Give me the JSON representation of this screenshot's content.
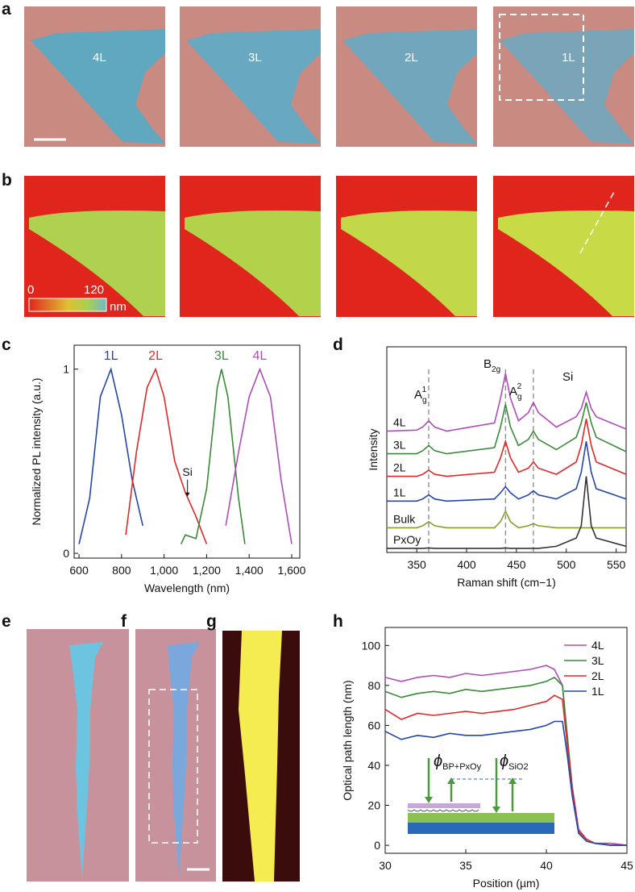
{
  "panel_labels": [
    "a",
    "b",
    "c",
    "d",
    "e",
    "f",
    "g",
    "h"
  ],
  "panel_a": {
    "layer_labels": [
      "4L",
      "3L",
      "2L",
      "1L"
    ]
  },
  "panel_b": {
    "colorbar": {
      "min": 0,
      "max": 120,
      "unit": "nm"
    }
  },
  "panel_h_inset": {
    "labels": [
      {
        "base": "ϕ",
        "sub": "BP+PxOy"
      },
      {
        "base": "ϕ",
        "sub": "SiO2"
      }
    ]
  },
  "chart_data": [
    {
      "type": "line",
      "xlabel": "Wavelength (nm)",
      "ylabel": "Normalized PL intensity (a.u.)",
      "xlim": [
        577,
        1638
      ],
      "ylim": [
        -0.026,
        1.13
      ],
      "xticks": [
        600,
        800,
        {
          "value": 1000,
          "label": "1,000"
        },
        {
          "value": 1200,
          "label": "1,200"
        },
        {
          "value": 1400,
          "label": "1,400"
        },
        {
          "value": 1600,
          "label": "1,600"
        }
      ],
      "yticks": [
        0,
        1
      ],
      "series": [
        {
          "name": "1L",
          "color": "#2346a8",
          "x": [
            600,
            650,
            700,
            750,
            800,
            850,
            900
          ],
          "values": [
            0.05,
            0.3,
            0.85,
            1.0,
            0.75,
            0.4,
            0.15
          ]
        },
        {
          "name": "2L",
          "color": "#e0282a",
          "x": [
            820,
            870,
            920,
            960,
            1000,
            1050,
            1100,
            1150,
            1200
          ],
          "values": [
            0.1,
            0.55,
            0.9,
            1.0,
            0.85,
            0.5,
            0.33,
            0.2,
            0.05
          ]
        },
        {
          "name": "3L",
          "color": "#3a8a3a",
          "x": [
            1080,
            1100,
            1150,
            1200,
            1250,
            1270,
            1300,
            1350,
            1380
          ],
          "values": [
            0.05,
            0.1,
            0.08,
            0.35,
            0.9,
            1.0,
            0.85,
            0.3,
            0.05
          ]
        },
        {
          "name": "4L",
          "color": "#b04cb8",
          "x": [
            1290,
            1350,
            1400,
            1450,
            1500,
            1550,
            1600
          ],
          "values": [
            0.15,
            0.55,
            0.85,
            1.0,
            0.85,
            0.4,
            0.05
          ]
        }
      ],
      "annotations": [
        {
          "text": "Si"
        }
      ]
    },
    {
      "type": "line",
      "xlabel": "Raman shift (cm−1)",
      "ylabel": "Intensity",
      "xlim": [
        320,
        560
      ],
      "ylim": [
        0,
        10
      ],
      "xticks": [
        350,
        400,
        450,
        500,
        550
      ],
      "yticks": [],
      "x": [
        320,
        350,
        356,
        362,
        368,
        380,
        428,
        434,
        439,
        444,
        452,
        462,
        467,
        472,
        490,
        510,
        515,
        520,
        525,
        530,
        560
      ],
      "peak_lines": [
        362,
        439,
        467
      ],
      "series": [
        {
          "name": "4L",
          "color": "#b04cb8",
          "values": [
            5.9,
            5.95,
            6.1,
            6.4,
            6.1,
            5.9,
            6.3,
            7.5,
            8.7,
            7.5,
            6.4,
            6.8,
            7.3,
            6.8,
            6.1,
            6.6,
            7.0,
            7.8,
            7.0,
            6.6,
            6.0
          ]
        },
        {
          "name": "3L",
          "color": "#3a8a3a",
          "values": [
            4.8,
            4.8,
            4.95,
            5.2,
            4.95,
            4.8,
            5.1,
            6.1,
            7.2,
            6.1,
            5.2,
            5.5,
            5.9,
            5.5,
            5.0,
            5.6,
            6.3,
            7.3,
            6.3,
            5.6,
            4.9
          ]
        },
        {
          "name": "2L",
          "color": "#e0282a",
          "values": [
            3.7,
            3.7,
            3.8,
            4.0,
            3.8,
            3.7,
            3.9,
            4.6,
            5.4,
            4.6,
            3.9,
            4.1,
            4.4,
            4.1,
            3.8,
            4.4,
            5.2,
            6.5,
            5.2,
            4.4,
            3.8
          ]
        },
        {
          "name": "1L",
          "color": "#2346a8",
          "values": [
            2.5,
            2.5,
            2.6,
            2.8,
            2.6,
            2.5,
            2.6,
            2.9,
            3.2,
            2.9,
            2.6,
            2.8,
            3.0,
            2.8,
            2.6,
            3.1,
            3.9,
            5.4,
            3.9,
            3.1,
            2.6
          ]
        },
        {
          "name": "Bulk",
          "color": "#8a9a30",
          "values": [
            1.2,
            1.2,
            1.3,
            1.5,
            1.3,
            1.2,
            1.2,
            1.5,
            2.0,
            1.5,
            1.2,
            1.3,
            1.4,
            1.3,
            1.2,
            1.2,
            1.2,
            1.2,
            1.2,
            1.2,
            1.2
          ]
        },
        {
          "name": "PxOy",
          "color": "#333333",
          "values": [
            0.2,
            0.2,
            0.2,
            0.22,
            0.2,
            0.2,
            0.2,
            0.2,
            0.22,
            0.2,
            0.2,
            0.2,
            0.2,
            0.2,
            0.3,
            0.7,
            1.3,
            3.7,
            1.3,
            0.7,
            0.3
          ]
        }
      ],
      "annotations": [
        {
          "base": "A",
          "sub": "g",
          "sup": "1"
        },
        {
          "base": "B",
          "sub": "2g"
        },
        {
          "base": "A",
          "sub": "g",
          "sup": "2"
        },
        {
          "base": "Si"
        }
      ]
    },
    {
      "type": "line",
      "xlabel": "Position (µm)",
      "ylabel": "Optical path length (nm)",
      "xlim": [
        30,
        45
      ],
      "ylim": [
        -4,
        109
      ],
      "xticks": [
        30,
        35,
        40,
        45
      ],
      "yticks": [
        0,
        20,
        40,
        60,
        80,
        100
      ],
      "x": [
        30,
        31,
        32,
        33,
        34,
        35,
        36,
        37,
        38,
        39,
        40,
        40.5,
        41,
        41.3,
        41.6,
        42,
        42.5,
        43,
        44,
        45
      ],
      "legend": "upper right",
      "series": [
        {
          "name": "4L",
          "color": "#b04cb8",
          "values": [
            84,
            82,
            84,
            85,
            84,
            86,
            85,
            86,
            87,
            88,
            90,
            88,
            80,
            55,
            30,
            8,
            3,
            1,
            1,
            0
          ]
        },
        {
          "name": "3L",
          "color": "#3a8a3a",
          "values": [
            77,
            74,
            76,
            77,
            76,
            78,
            77,
            78,
            79,
            80,
            82,
            84,
            80,
            54,
            29,
            7,
            3,
            1,
            0,
            0
          ]
        },
        {
          "name": "2L",
          "color": "#e0282a",
          "values": [
            68,
            63,
            66,
            65,
            66,
            67,
            66,
            67,
            68,
            70,
            72,
            75,
            73,
            50,
            28,
            7,
            3,
            1,
            0,
            0
          ]
        },
        {
          "name": "1L",
          "color": "#2346a8",
          "values": [
            57,
            53,
            55,
            54,
            56,
            55,
            55,
            56,
            57,
            58,
            60,
            62,
            62,
            45,
            25,
            6,
            2,
            1,
            0,
            0
          ]
        }
      ]
    }
  ]
}
